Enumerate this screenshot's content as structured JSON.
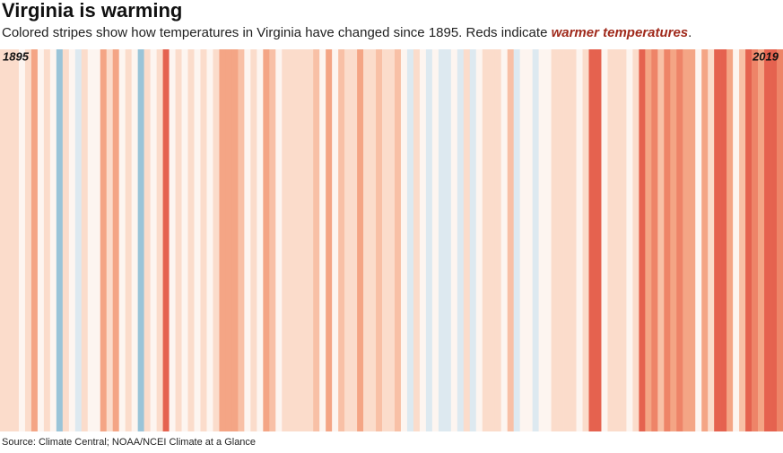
{
  "chart_data": {
    "type": "stripes",
    "title": "Virginia is warming",
    "subtitle_parts": [
      "Colored stripes show how temperatures in Virginia have changed since 1895. Reds indicate ",
      "warmer temperatures",
      "."
    ],
    "source": "Source: Climate Central; NOAA/NCEI Climate at a Glance",
    "xlim": [
      1895,
      2019
    ],
    "colors": [
      "#fbdccb",
      "#fbdccb",
      "#fbdccb",
      "#fdf5f0",
      "#fbdccb",
      "#f4a585",
      "#fdf5f0",
      "#fbdccb",
      "#fdf5f0",
      "#9ac4d8",
      "#fbdccb",
      "#fdf5f0",
      "#dde9f0",
      "#fbdccb",
      "#fdf5f0",
      "#fdf5f0",
      "#f4a585",
      "#fbdccb",
      "#f4a585",
      "#fdf5f0",
      "#fbdccb",
      "#fdf5f0",
      "#9ac4d8",
      "#fbdccb",
      "#fdf5f0",
      "#fbdccb",
      "#e5624f",
      "#fdf5f0",
      "#fbdccb",
      "#fdf5f0",
      "#fbdccb",
      "#fdf5f0",
      "#fbdccb",
      "#fdf5f0",
      "#fbdccb",
      "#f4a585",
      "#f4a585",
      "#f4a585",
      "#f8c0a6",
      "#fdf5f0",
      "#fbdccb",
      "#fdf5f0",
      "#f4a585",
      "#f8c0a6",
      "#fdf5f0",
      "#fbdccb",
      "#fbdccb",
      "#fbdccb",
      "#fbdccb",
      "#fbdccb",
      "#f8c0a6",
      "#fdf5f0",
      "#f4a585",
      "#fdf5f0",
      "#f8c0a6",
      "#fbdccb",
      "#fbdccb",
      "#f4a585",
      "#fbdccb",
      "#fbdccb",
      "#f8c0a6",
      "#fbdccb",
      "#fbdccb",
      "#f8c0a6",
      "#fdf5f0",
      "#dde9f0",
      "#fbdccb",
      "#fdf5f0",
      "#dde9f0",
      "#fdf5f0",
      "#dde9f0",
      "#dde9f0",
      "#fdf5f0",
      "#dde9f0",
      "#fbdccb",
      "#dde9f0",
      "#fdf5f0",
      "#fbdccb",
      "#fbdccb",
      "#fbdccb",
      "#fdf5f0",
      "#f8c0a6",
      "#dde9f0",
      "#fdf5f0",
      "#fdf5f0",
      "#dde9f0",
      "#fdf5f0",
      "#fdf5f0",
      "#fbdccb",
      "#fbdccb",
      "#fbdccb",
      "#fbdccb",
      "#fdf5f0",
      "#fbdccb",
      "#e5624f",
      "#e5624f",
      "#fdf5f0",
      "#fbdccb",
      "#fbdccb",
      "#fbdccb",
      "#fdf5f0",
      "#fbdccb",
      "#e5624f",
      "#f4a585",
      "#ee8468",
      "#f8c0a6",
      "#ee8468",
      "#f4a585",
      "#ee8468",
      "#f4a585",
      "#f4a585",
      "#fdf5f0",
      "#f4a585",
      "#fbdccb",
      "#e5624f",
      "#e5624f",
      "#f4a585",
      "#fdf5f0",
      "#f8c0a6",
      "#e5624f",
      "#ee8468",
      "#f4a585",
      "#e5624f",
      "#e5624f",
      "#ee8468"
    ]
  }
}
